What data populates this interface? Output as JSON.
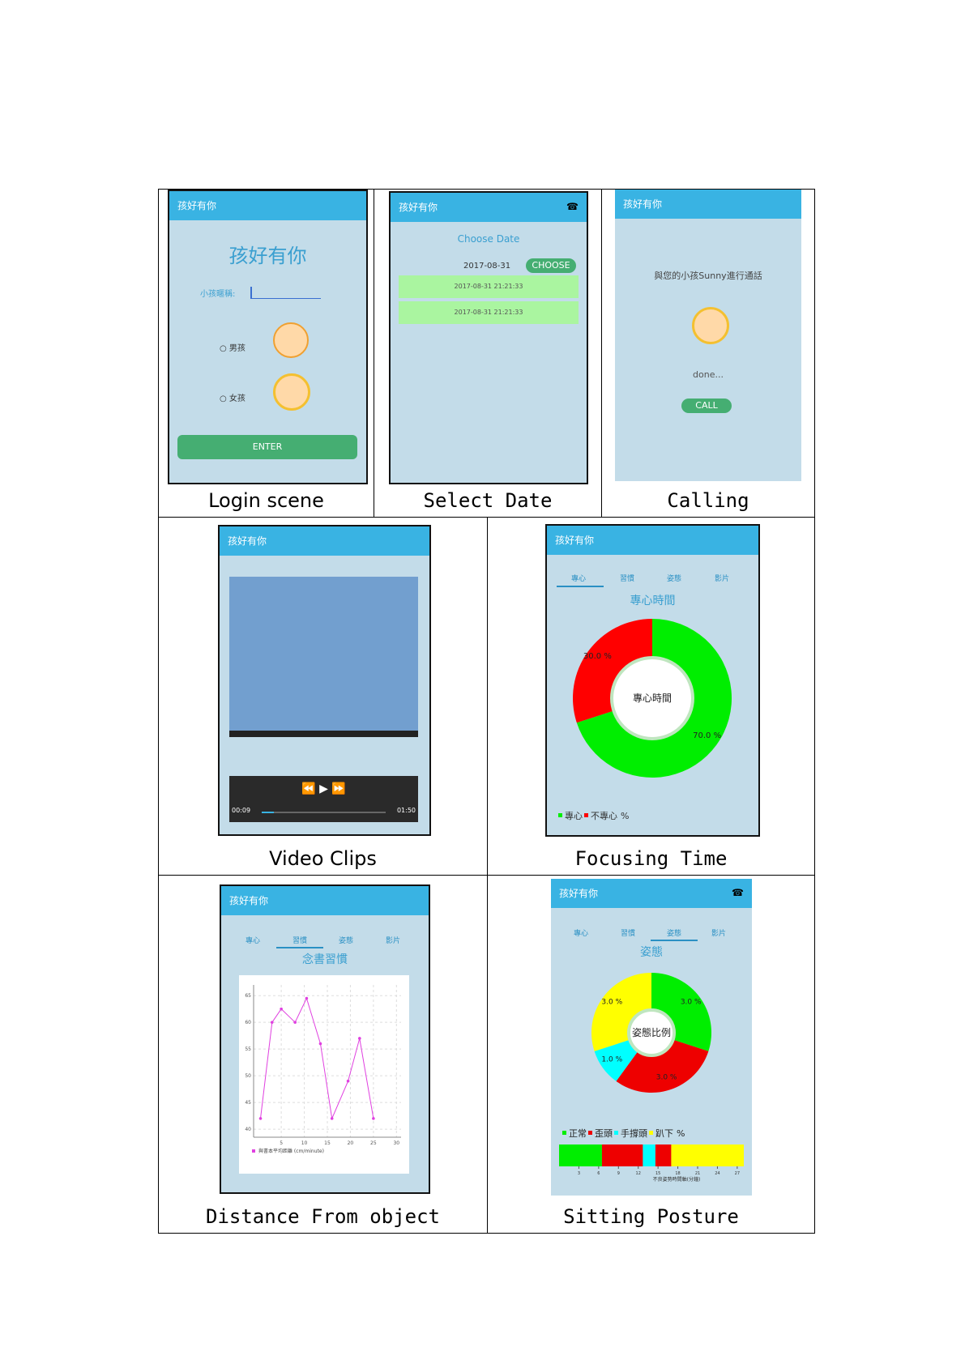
{
  "panels": [
    {
      "caption": "Login scene",
      "app_title": "孩好有你",
      "heading": "孩好有你",
      "nickname_label": "小孩暱稱:",
      "options": [
        "男孩",
        "女孩"
      ],
      "button": "ENTER"
    },
    {
      "caption": "Select Date",
      "app_title": "孩好有你",
      "heading": "Choose Date",
      "date": "2017-08-31",
      "button": "CHOOSE",
      "records": [
        "2017-08-31 21:21:33",
        "2017-08-31 21:21:33"
      ]
    },
    {
      "caption": "Calling",
      "app_title": "孩好有你",
      "message": "與您的小孩Sunny進行通話",
      "status": "done...",
      "button": "CALL"
    },
    {
      "caption": "Video Clips",
      "app_title": "孩好有你",
      "time_start": "00:09",
      "time_end": "01:50"
    },
    {
      "caption": "Focusing Time",
      "app_title": "孩好有你",
      "tabs": [
        "專心",
        "習慣",
        "姿態",
        "影片"
      ],
      "heading": "專心時間",
      "center": "專心時間",
      "segments": [
        {
          "name": "專心",
          "value": 70,
          "label": "70.0 %",
          "color": "#00ee00"
        },
        {
          "name": "不專心",
          "value": 30,
          "label": "30.0 %",
          "color": "#ff0000"
        }
      ],
      "legend_unit": "%"
    },
    {
      "caption": "Distance From object",
      "app_title": "孩好有你",
      "tabs": [
        "專心",
        "習慣",
        "姿態",
        "影片"
      ],
      "heading": "念書習慣",
      "chart": {
        "type": "line",
        "x": [
          0.5,
          3,
          5,
          8,
          10.5,
          13.5,
          16,
          19.5,
          22,
          25
        ],
        "values": [
          42,
          60,
          62.5,
          60,
          64.5,
          56,
          42,
          49,
          57,
          42
        ],
        "color": "#e040e0",
        "xlim": [
          -1,
          31
        ],
        "ylim": [
          38.5,
          67
        ],
        "xticks": [
          5,
          10,
          15,
          20,
          25,
          30
        ],
        "yticks": [
          40,
          45,
          50,
          55,
          60,
          65
        ],
        "legend": "與書本平均距離 (cm/minute)"
      }
    },
    {
      "caption": "Sitting Posture",
      "app_title": "孩好有你",
      "tabs": [
        "專心",
        "習慣",
        "姿態",
        "影片"
      ],
      "heading": "姿態",
      "center": "姿態比例",
      "segments": [
        {
          "name": "正常",
          "value": 3,
          "label": "3.0 %",
          "color": "#00ee00"
        },
        {
          "name": "歪頭",
          "value": 3,
          "label": "3.0 %",
          "color": "#ee0000"
        },
        {
          "name": "手撐頭",
          "value": 1,
          "label": "1.0 %",
          "color": "#00ffff"
        },
        {
          "name": "趴下",
          "value": 3,
          "label": "3.0 %",
          "color": "#ffff00"
        }
      ],
      "legend_unit": "%",
      "timeline": {
        "spans": [
          {
            "from": 0,
            "to": 6.5,
            "color": "#00ee00"
          },
          {
            "from": 6.5,
            "to": 12.7,
            "color": "#ee0000"
          },
          {
            "from": 12.7,
            "to": 14.6,
            "color": "#00ffff"
          },
          {
            "from": 14.6,
            "to": 17,
            "color": "#ee0000"
          },
          {
            "from": 17,
            "to": 28,
            "color": "#ffff00"
          }
        ],
        "xlim": [
          0,
          28
        ],
        "xticks": [
          3,
          6,
          9,
          12,
          15,
          18,
          21,
          24,
          27
        ],
        "axis_label": "不良姿勢時間軸(分鐘)"
      }
    }
  ]
}
